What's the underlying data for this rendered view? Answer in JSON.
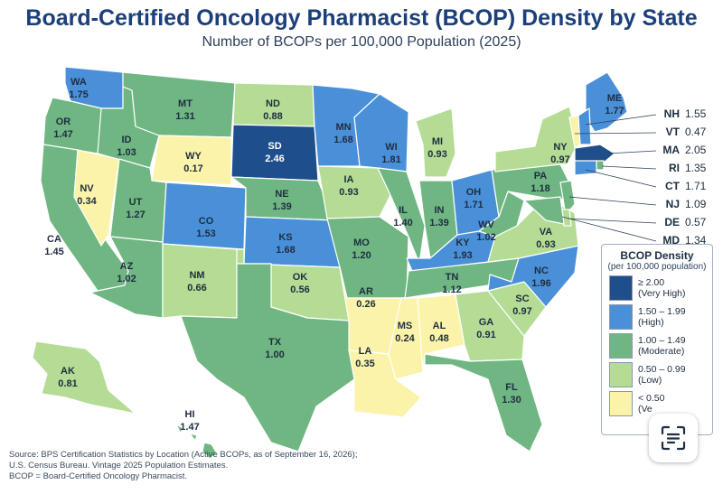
{
  "title": "Board-Certified Oncology Pharmacist (BCOP) Density by State",
  "subtitle": "Number of BCOPs per 100,000 Population (2025)",
  "colors": {
    "very_high": "#1f4e8c",
    "high": "#4a90d9",
    "moderate": "#6fb682",
    "low": "#b4dc95",
    "very_low": "#fbf3aa"
  },
  "states": [
    {
      "code": "WA",
      "value": "1.75",
      "level": "high"
    },
    {
      "code": "OR",
      "value": "1.47",
      "level": "moderate"
    },
    {
      "code": "CA",
      "value": "1.45",
      "level": "moderate"
    },
    {
      "code": "NV",
      "value": "0.34",
      "level": "very_low"
    },
    {
      "code": "ID",
      "value": "1.03",
      "level": "moderate"
    },
    {
      "code": "MT",
      "value": "1.31",
      "level": "moderate"
    },
    {
      "code": "WY",
      "value": "0.17",
      "level": "very_low"
    },
    {
      "code": "UT",
      "value": "1.27",
      "level": "moderate"
    },
    {
      "code": "AZ",
      "value": "1.02",
      "level": "moderate"
    },
    {
      "code": "CO",
      "value": "1.53",
      "level": "high"
    },
    {
      "code": "NM",
      "value": "0.66",
      "level": "low"
    },
    {
      "code": "ND",
      "value": "0.88",
      "level": "low"
    },
    {
      "code": "SD",
      "value": "2.46",
      "level": "very_high"
    },
    {
      "code": "NE",
      "value": "1.39",
      "level": "moderate"
    },
    {
      "code": "KS",
      "value": "1.68",
      "level": "high"
    },
    {
      "code": "OK",
      "value": "0.56",
      "level": "low"
    },
    {
      "code": "TX",
      "value": "1.00",
      "level": "moderate"
    },
    {
      "code": "MN",
      "value": "1.68",
      "level": "high"
    },
    {
      "code": "IA",
      "value": "0.93",
      "level": "low"
    },
    {
      "code": "MO",
      "value": "1.20",
      "level": "moderate"
    },
    {
      "code": "AR",
      "value": "0.26",
      "level": "very_low"
    },
    {
      "code": "LA",
      "value": "0.35",
      "level": "very_low"
    },
    {
      "code": "WI",
      "value": "1.81",
      "level": "high"
    },
    {
      "code": "IL",
      "value": "1.40",
      "level": "moderate"
    },
    {
      "code": "MS",
      "value": "0.24",
      "level": "very_low"
    },
    {
      "code": "MI",
      "value": "0.93",
      "level": "low"
    },
    {
      "code": "IN",
      "value": "1.39",
      "level": "moderate"
    },
    {
      "code": "KY",
      "value": "1.93",
      "level": "high"
    },
    {
      "code": "TN",
      "value": "1.12",
      "level": "moderate"
    },
    {
      "code": "AL",
      "value": "0.48",
      "level": "very_low"
    },
    {
      "code": "OH",
      "value": "1.71",
      "level": "high"
    },
    {
      "code": "GA",
      "value": "0.91",
      "level": "low"
    },
    {
      "code": "FL",
      "value": "1.30",
      "level": "moderate"
    },
    {
      "code": "SC",
      "value": "0.97",
      "level": "low"
    },
    {
      "code": "NC",
      "value": "1.96",
      "level": "high"
    },
    {
      "code": "VA",
      "value": "0.93",
      "level": "low"
    },
    {
      "code": "WV",
      "value": "1.02",
      "level": "moderate"
    },
    {
      "code": "PA",
      "value": "1.18",
      "level": "moderate"
    },
    {
      "code": "NY",
      "value": "0.97",
      "level": "low"
    },
    {
      "code": "ME",
      "value": "1.77",
      "level": "high"
    },
    {
      "code": "AK",
      "value": "0.81",
      "level": "low"
    },
    {
      "code": "HI",
      "value": "1.47",
      "level": "moderate"
    },
    {
      "code": "VT",
      "value": "0.47",
      "level": "very_low"
    },
    {
      "code": "NH",
      "value": "1.55",
      "level": "high"
    },
    {
      "code": "MA",
      "value": "2.05",
      "level": "very_high"
    },
    {
      "code": "RI",
      "value": "1.35",
      "level": "moderate"
    },
    {
      "code": "CT",
      "value": "1.71",
      "level": "high"
    },
    {
      "code": "NJ",
      "value": "1.09",
      "level": "moderate"
    },
    {
      "code": "DE",
      "value": "0.57",
      "level": "low"
    },
    {
      "code": "MD",
      "value": "1.34",
      "level": "moderate"
    }
  ],
  "callouts": [
    {
      "code": "NH",
      "value": "1.55"
    },
    {
      "code": "VT",
      "value": "0.47"
    },
    {
      "code": "MA",
      "value": "2.05"
    },
    {
      "code": "RI",
      "value": "1.35"
    },
    {
      "code": "CT",
      "value": "1.71"
    },
    {
      "code": "NJ",
      "value": "1.09"
    },
    {
      "code": "DE",
      "value": "0.57"
    },
    {
      "code": "MD",
      "value": "1.34"
    }
  ],
  "legend": {
    "title": "BCOP Density",
    "subtitle": "(per 100,000 population)",
    "items": [
      {
        "range": "≥ 2.00",
        "desc": "(Very High)",
        "level": "very_high"
      },
      {
        "range": "1.50 – 1.99",
        "desc": "(High)",
        "level": "high"
      },
      {
        "range": "1.00 – 1.49",
        "desc": "(Moderate)",
        "level": "moderate"
      },
      {
        "range": "0.50 – 0.99",
        "desc": "(Low)",
        "level": "low"
      },
      {
        "range": "< 0.50",
        "desc": "(Ve",
        "level": "very_low"
      }
    ]
  },
  "source_lines": [
    "Source: BPS Certification Statistics by Location (Active BCOPs, as of September 16, 2026);",
    "U.S. Census Bureau. Vintage 2025 Population Estimates.",
    "BCOP = Board-Certified Oncology Pharmacist."
  ],
  "scan_button": {
    "icon": "text-scan-icon"
  }
}
